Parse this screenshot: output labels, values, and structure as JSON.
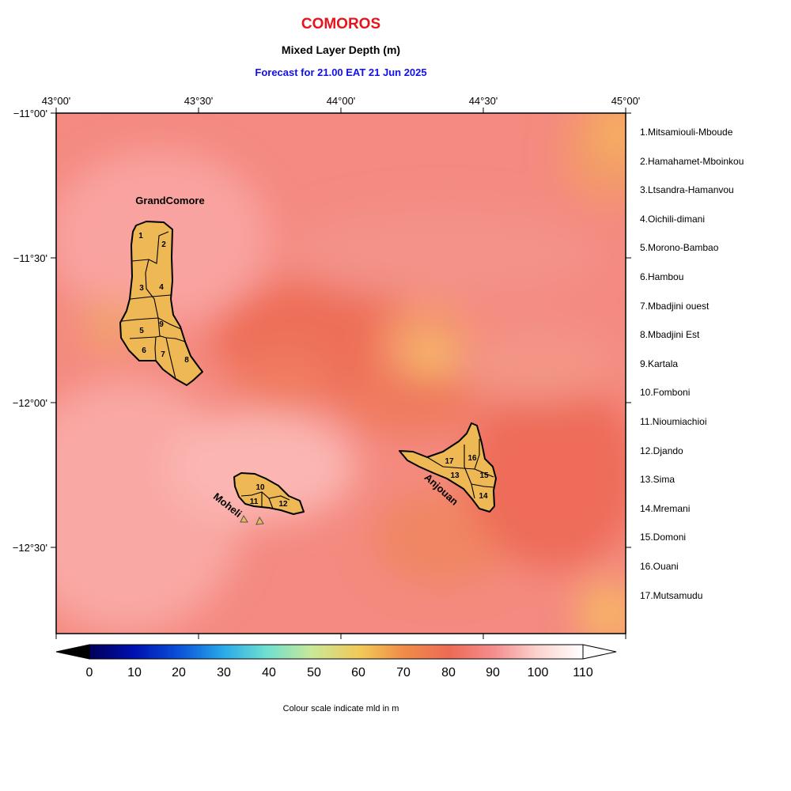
{
  "header": {
    "title": "COMOROS",
    "subtitle": "Mixed Layer Depth (m)",
    "forecast": "Forecast for  21.00 EAT 21 Jun 2025",
    "title_color": "#e8141b",
    "forecast_color": "#1010ee"
  },
  "axes": {
    "lon_labels": [
      "43°00'",
      "43°30'",
      "44°00'",
      "44°30'",
      "45°00'"
    ],
    "lat_labels": [
      "−11°00'",
      "−11°30'",
      "−12°00'",
      "−12°30'"
    ]
  },
  "islands": {
    "grand_comore": "GrandComore",
    "moheli": "Moheli",
    "anjouan": "Anjouan",
    "fill_color": "#eeb855",
    "region_numbers": [
      "1",
      "2",
      "3",
      "4",
      "5",
      "6",
      "7",
      "8",
      "9",
      "10",
      "11",
      "12",
      "13",
      "14",
      "15",
      "16",
      "17"
    ]
  },
  "regions": [
    "1.Mitsamiouli-Mboude",
    "2.Hamahamet-Mboinkou",
    "3.Ltsandra-Hamanvou",
    "4.Oichili-dimani",
    "5.Morono-Bambao",
    "6.Hambou",
    "7.Mbadjini ouest",
    "8.Mbadjini Est",
    "9.Kartala",
    "10.Fomboni",
    "11.Nioumiachioi",
    "12.Djando",
    "13.Sima",
    "14.Mremani",
    "15.Domoni",
    "16.Ouani",
    "17.Mutsamudu"
  ],
  "colorbar": {
    "ticks": [
      "0",
      "10",
      "20",
      "30",
      "40",
      "50",
      "60",
      "70",
      "80",
      "90",
      "100",
      "110"
    ],
    "caption": "Colour scale indicate mld in m",
    "stops": [
      "#000058",
      "#0010b0",
      "#0a50d8",
      "#28a8e8",
      "#70e0d0",
      "#c8e898",
      "#f2c858",
      "#f08a48",
      "#ee6a56",
      "#f48e8e",
      "#fbd4d0",
      "#ffffff"
    ]
  }
}
